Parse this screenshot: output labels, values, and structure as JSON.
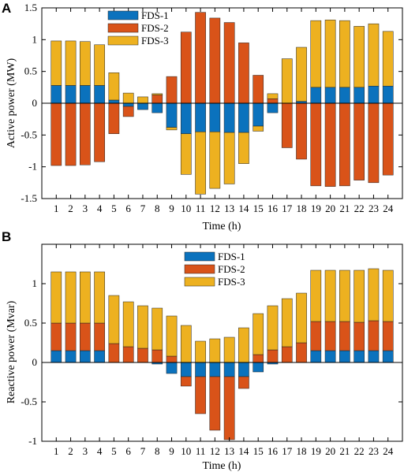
{
  "panels": [
    {
      "letter": "A"
    },
    {
      "letter": "B"
    }
  ],
  "colors": {
    "FDS-1": "#0b72bd",
    "FDS-2": "#d95319",
    "FDS-3": "#edb120"
  },
  "chart_data": [
    {
      "type": "bar",
      "stacked": true,
      "title": "",
      "xlabel": "Time (h)",
      "ylabel": "Active power (MW)",
      "ylim": [
        -1.5,
        1.5
      ],
      "yticks": [
        -1.5,
        -1,
        -0.5,
        0,
        0.5,
        1,
        1.5
      ],
      "grid": false,
      "legend": "top-left",
      "categories": [
        "1",
        "2",
        "3",
        "4",
        "5",
        "6",
        "7",
        "8",
        "9",
        "10",
        "11",
        "12",
        "13",
        "14",
        "15",
        "16",
        "17",
        "18",
        "19",
        "20",
        "21",
        "22",
        "23",
        "24"
      ],
      "series": [
        {
          "name": "FDS-1",
          "values": [
            0.28,
            0.28,
            0.28,
            0.28,
            0.05,
            -0.05,
            -0.1,
            -0.15,
            -0.38,
            -0.48,
            -0.45,
            -0.45,
            -0.46,
            -0.46,
            -0.36,
            -0.15,
            0,
            0.03,
            0.25,
            0.25,
            0.25,
            0.25,
            0.27,
            0.27
          ]
        },
        {
          "name": "FDS-2",
          "values": [
            -0.98,
            -0.98,
            -0.97,
            -0.92,
            -0.48,
            -0.16,
            0,
            0.13,
            0.42,
            1.12,
            1.43,
            1.34,
            1.27,
            0.95,
            0.44,
            0.07,
            -0.7,
            -0.88,
            -1.3,
            -1.31,
            -1.3,
            -1.21,
            -1.25,
            -1.13
          ]
        },
        {
          "name": "FDS-3",
          "values": [
            0.7,
            0.7,
            0.69,
            0.64,
            0.43,
            0.16,
            0.1,
            0.02,
            -0.04,
            -0.64,
            -0.98,
            -0.89,
            -0.81,
            -0.49,
            -0.08,
            0.08,
            0.7,
            0.85,
            1.05,
            1.06,
            1.05,
            0.96,
            0.98,
            0.86
          ]
        }
      ]
    },
    {
      "type": "bar",
      "stacked": true,
      "title": "",
      "xlabel": "Time (h)",
      "ylabel": "Reactive power (Mvar)",
      "ylim": [
        -1,
        1.5
      ],
      "yticks": [
        -1,
        -0.5,
        0,
        0.5,
        1
      ],
      "grid": false,
      "legend": "top-center",
      "categories": [
        "1",
        "2",
        "3",
        "4",
        "5",
        "6",
        "7",
        "8",
        "9",
        "10",
        "11",
        "12",
        "13",
        "14",
        "15",
        "16",
        "17",
        "18",
        "19",
        "20",
        "21",
        "22",
        "23",
        "24"
      ],
      "series": [
        {
          "name": "FDS-1",
          "values": [
            0.15,
            0.15,
            0.15,
            0.15,
            0,
            0,
            0,
            -0.02,
            -0.14,
            -0.18,
            -0.18,
            -0.18,
            -0.18,
            -0.18,
            -0.12,
            -0.02,
            0,
            0,
            0.15,
            0.15,
            0.15,
            0.15,
            0.15,
            0.15
          ]
        },
        {
          "name": "FDS-2",
          "values": [
            0.35,
            0.35,
            0.35,
            0.35,
            0.24,
            0.2,
            0.18,
            0.16,
            0.08,
            -0.12,
            -0.47,
            -0.68,
            -0.8,
            -0.15,
            0.1,
            0.16,
            0.2,
            0.25,
            0.37,
            0.37,
            0.37,
            0.36,
            0.38,
            0.37
          ]
        },
        {
          "name": "FDS-3",
          "values": [
            0.65,
            0.65,
            0.65,
            0.65,
            0.61,
            0.57,
            0.54,
            0.53,
            0.51,
            0.47,
            0.27,
            0.3,
            0.32,
            0.44,
            0.52,
            0.56,
            0.61,
            0.63,
            0.65,
            0.65,
            0.65,
            0.66,
            0.66,
            0.65
          ]
        }
      ]
    }
  ]
}
